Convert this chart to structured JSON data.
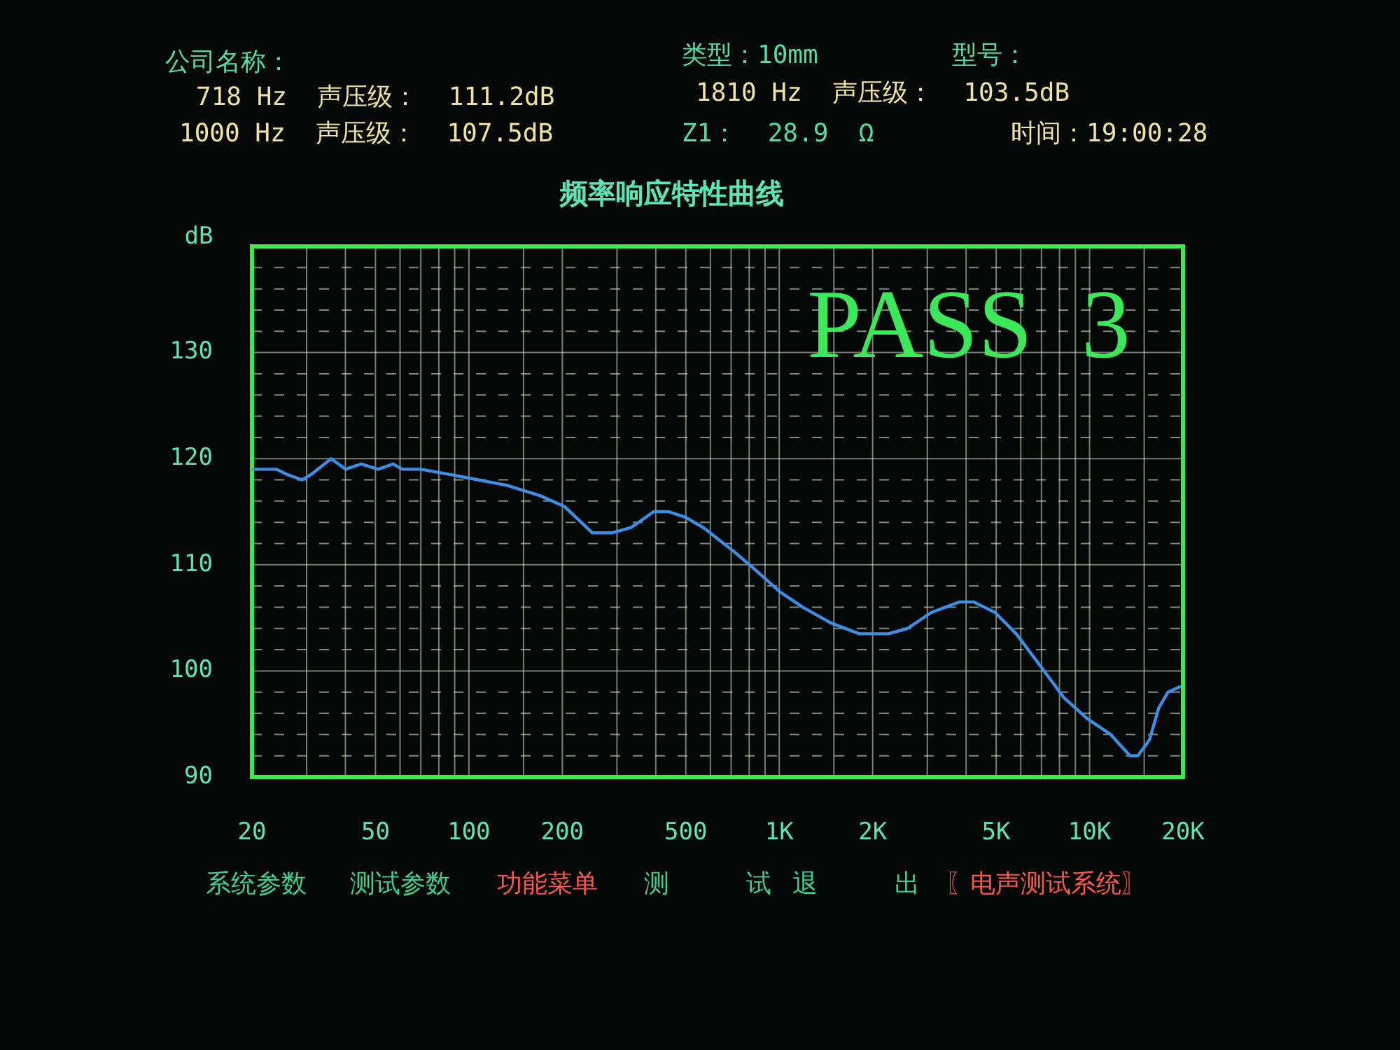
{
  "chart_data": {
    "type": "line",
    "title": "频率响应特性曲线",
    "ylabel": "dB",
    "x": [
      20,
      24,
      26,
      29,
      31,
      36,
      40,
      45,
      51,
      57,
      61,
      70,
      87,
      107,
      132,
      170,
      203,
      250,
      288,
      333,
      394,
      440,
      497,
      570,
      718,
      839,
      1000,
      1190,
      1470,
      1810,
      2020,
      2250,
      2590,
      3090,
      3810,
      4230,
      4960,
      5800,
      6930,
      8250,
      9830,
      11700,
      13500,
      14300,
      15600,
      16700,
      17900,
      19500
    ],
    "series": [
      {
        "color": "#3d8fe6",
        "values": [
          119,
          119,
          118.5,
          118,
          118.5,
          120,
          119,
          119.5,
          119,
          119.5,
          119,
          119,
          118.5,
          118,
          117.5,
          116.5,
          115.5,
          113,
          113,
          113.5,
          115,
          115,
          114.5,
          113.5,
          111.2,
          109.5,
          107.5,
          106,
          104.5,
          103.5,
          103.5,
          103.5,
          104,
          105.5,
          106.5,
          106.5,
          105.5,
          103.5,
          100.5,
          97.5,
          95.5,
          94,
          92,
          92,
          93.5,
          96.5,
          98,
          98.5
        ]
      }
    ],
    "log": "x",
    "xlim": [
      20,
      20000
    ],
    "xticks": [
      20,
      {
        "value": 30,
        "label": null
      },
      {
        "value": 40,
        "label": null
      },
      50,
      {
        "value": 60,
        "label": null
      },
      {
        "value": 70,
        "label": null
      },
      {
        "value": 80,
        "label": null
      },
      {
        "value": 90,
        "label": null
      },
      100,
      {
        "value": 150,
        "label": null
      },
      200,
      {
        "value": 300,
        "label": null
      },
      {
        "value": 400,
        "label": null
      },
      500,
      {
        "value": 600,
        "label": null
      },
      {
        "value": 700,
        "label": null
      },
      {
        "value": 800,
        "label": null
      },
      {
        "value": 900,
        "label": null
      },
      {
        "value": 1000,
        "label": "1K"
      },
      {
        "value": 1500,
        "label": null
      },
      {
        "value": 2000,
        "label": "2K"
      },
      {
        "value": 3000,
        "label": null
      },
      {
        "value": 4000,
        "label": null
      },
      {
        "value": 5000,
        "label": "5K"
      },
      {
        "value": 6000,
        "label": null
      },
      {
        "value": 7000,
        "label": null
      },
      {
        "value": 8000,
        "label": null
      },
      {
        "value": 9000,
        "label": null
      },
      {
        "value": 10000,
        "label": "10K"
      },
      {
        "value": 15000,
        "label": null
      },
      {
        "value": 20000,
        "label": "20K"
      }
    ],
    "ylim": [
      90,
      140
    ],
    "yticks": [
      90,
      {
        "value": 92,
        "label": null
      },
      {
        "value": 94,
        "label": null
      },
      {
        "value": 96,
        "label": null
      },
      {
        "value": 98,
        "label": null
      },
      100,
      {
        "value": 102,
        "label": null
      },
      {
        "value": 104,
        "label": null
      },
      {
        "value": 106,
        "label": null
      },
      {
        "value": 108,
        "label": null
      },
      110,
      {
        "value": 112,
        "label": null
      },
      {
        "value": 114,
        "label": null
      },
      {
        "value": 116,
        "label": null
      },
      {
        "value": 118,
        "label": null
      },
      120,
      {
        "value": 122,
        "label": null
      },
      {
        "value": 124,
        "label": null
      },
      {
        "value": 126,
        "label": null
      },
      {
        "value": 128,
        "label": null
      },
      130,
      {
        "value": 132,
        "label": null
      },
      {
        "value": 134,
        "label": null
      },
      {
        "value": 136,
        "label": null
      },
      {
        "value": 138,
        "label": null
      }
    ],
    "grid": true,
    "legend": false,
    "annotations": [
      "公司名称：",
      "718 Hz  声压级：  111.2dB",
      "1000 Hz  声压级：  107.5dB",
      "类型：10mm",
      "1810 Hz  声压级：  103.5dB",
      "Z1：  28.9  Ω",
      "型号：",
      "时间：19:00:28",
      "PASS  3",
      "系统参数",
      "测试参数",
      "功能菜单",
      "测 试",
      "退 出",
      "〖电声测试系统〗"
    ]
  }
}
